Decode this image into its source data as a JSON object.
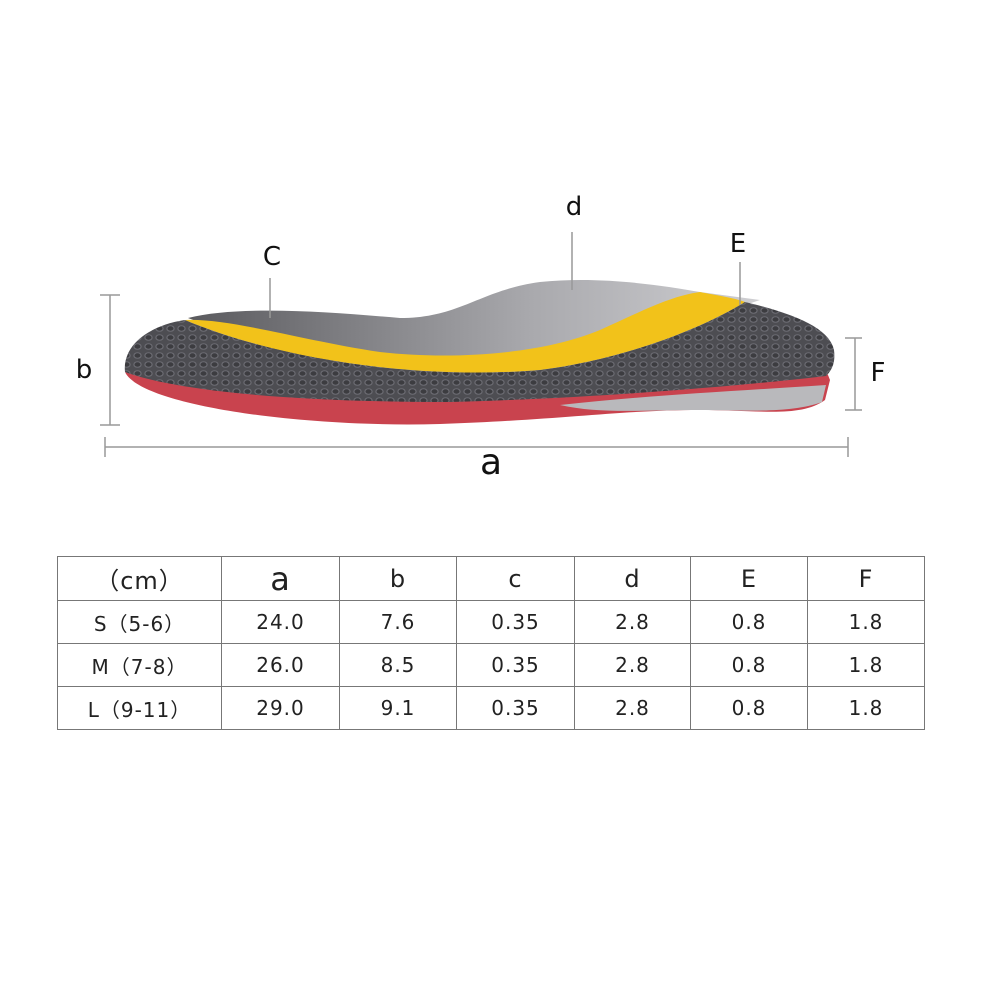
{
  "diagram": {
    "labels": {
      "a": "a",
      "b": "b",
      "c": "C",
      "d": "d",
      "e": "E",
      "f": "F"
    }
  },
  "table": {
    "header": [
      "（cm）",
      "a",
      "b",
      "c",
      "d",
      "E",
      "F"
    ],
    "rows": [
      [
        "S（5-6）",
        "24.0",
        "7.6",
        "0.35",
        "2.8",
        "0.8",
        "1.8"
      ],
      [
        "M（7-8）",
        "26.0",
        "8.5",
        "0.35",
        "2.8",
        "0.8",
        "1.8"
      ],
      [
        "L（9-11）",
        "29.0",
        "9.1",
        "0.35",
        "2.8",
        "0.8",
        "1.8"
      ]
    ]
  }
}
